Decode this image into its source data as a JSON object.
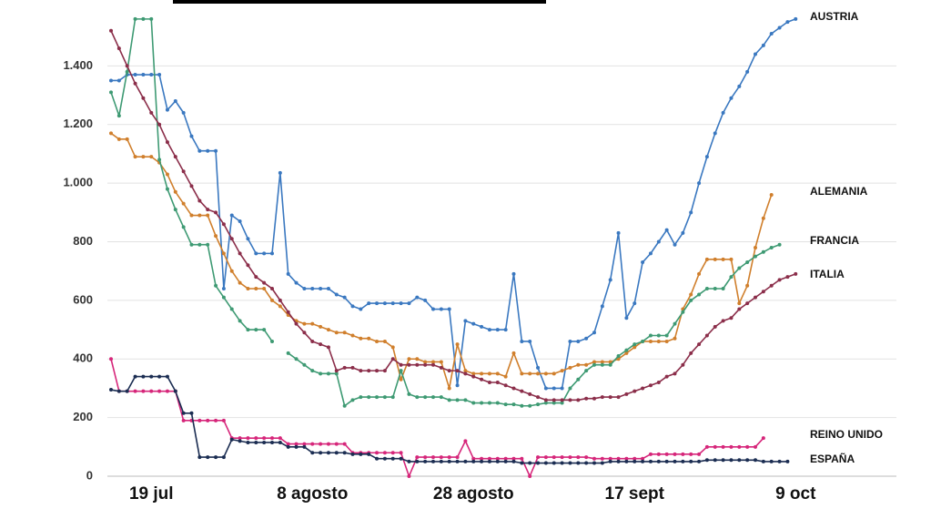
{
  "chart_data": {
    "type": "line",
    "categories": [
      null,
      null,
      null,
      null,
      null,
      "19 jul",
      null,
      null,
      null,
      null,
      null,
      null,
      null,
      null,
      null,
      null,
      null,
      null,
      null,
      null,
      null,
      null,
      null,
      null,
      null,
      "8 agosto",
      null,
      null,
      null,
      null,
      null,
      null,
      null,
      null,
      null,
      null,
      null,
      null,
      null,
      null,
      null,
      null,
      null,
      null,
      null,
      "28 agosto",
      null,
      null,
      null,
      null,
      null,
      null,
      null,
      null,
      null,
      null,
      null,
      null,
      null,
      null,
      null,
      null,
      null,
      null,
      null,
      "17 sept",
      null,
      null,
      null,
      null,
      null,
      null,
      null,
      null,
      null,
      null,
      null,
      null,
      null,
      null,
      null,
      null,
      null,
      null,
      null,
      "9 oct"
    ],
    "series": [
      {
        "name": "AUSTRIA",
        "color": "#3a78c0",
        "values": [
          1350,
          1350,
          1370,
          1370,
          1370,
          1370,
          1370,
          1250,
          1280,
          1240,
          1160,
          1110,
          1110,
          1110,
          640,
          890,
          870,
          810,
          760,
          760,
          760,
          1035,
          690,
          660,
          640,
          640,
          640,
          640,
          620,
          610,
          580,
          570,
          590,
          590,
          590,
          590,
          590,
          590,
          610,
          600,
          570,
          570,
          570,
          310,
          530,
          520,
          510,
          500,
          500,
          500,
          690,
          460,
          460,
          370,
          300,
          300,
          300,
          460,
          460,
          470,
          490,
          580,
          670,
          830,
          540,
          590,
          730,
          760,
          800,
          840,
          790,
          830,
          900,
          1000,
          1090,
          1170,
          1240,
          1290,
          1330,
          1380,
          1440,
          1470,
          1510,
          1530,
          1550,
          1560
        ]
      },
      {
        "name": "ALEMANIA",
        "color": "#d07f2c",
        "values": [
          1170,
          1150,
          1150,
          1090,
          1090,
          1090,
          1070,
          1030,
          970,
          930,
          890,
          890,
          890,
          820,
          760,
          700,
          660,
          640,
          640,
          640,
          600,
          580,
          550,
          530,
          520,
          520,
          510,
          500,
          490,
          490,
          480,
          470,
          470,
          460,
          460,
          440,
          330,
          400,
          400,
          390,
          390,
          390,
          300,
          450,
          360,
          350,
          350,
          350,
          350,
          340,
          420,
          350,
          350,
          350,
          350,
          350,
          360,
          370,
          380,
          380,
          390,
          390,
          390,
          400,
          420,
          440,
          460,
          460,
          460,
          460,
          470,
          570,
          620,
          690,
          740,
          740,
          740,
          740,
          590,
          650,
          780,
          880,
          960,
          null,
          null,
          null
        ]
      },
      {
        "name": "FRANCIA",
        "color": "#3e9a73",
        "values": [
          1310,
          1230,
          1380,
          1560,
          1560,
          1560,
          1080,
          980,
          910,
          850,
          790,
          790,
          790,
          650,
          610,
          570,
          530,
          500,
          500,
          500,
          460,
          null,
          420,
          400,
          380,
          360,
          350,
          350,
          350,
          240,
          260,
          270,
          270,
          270,
          270,
          270,
          360,
          280,
          270,
          270,
          270,
          270,
          260,
          260,
          260,
          250,
          250,
          250,
          250,
          245,
          245,
          240,
          240,
          245,
          250,
          250,
          250,
          300,
          330,
          360,
          380,
          380,
          380,
          410,
          430,
          450,
          460,
          480,
          480,
          480,
          520,
          560,
          600,
          620,
          640,
          640,
          640,
          680,
          710,
          730,
          750,
          765,
          780,
          790,
          null,
          null
        ]
      },
      {
        "name": "ITALIA",
        "color": "#8b2e4a",
        "values": [
          1520,
          1460,
          1400,
          1340,
          1290,
          1240,
          1200,
          1140,
          1090,
          1040,
          990,
          940,
          910,
          900,
          860,
          810,
          760,
          720,
          680,
          660,
          640,
          600,
          560,
          520,
          490,
          460,
          450,
          440,
          360,
          370,
          370,
          360,
          360,
          360,
          360,
          400,
          380,
          380,
          380,
          380,
          380,
          370,
          360,
          360,
          350,
          340,
          330,
          320,
          320,
          310,
          300,
          290,
          280,
          270,
          260,
          260,
          260,
          260,
          260,
          265,
          265,
          270,
          270,
          270,
          280,
          290,
          300,
          310,
          320,
          340,
          350,
          380,
          420,
          450,
          480,
          510,
          530,
          540,
          570,
          590,
          610,
          630,
          650,
          670,
          680,
          690
        ]
      },
      {
        "name": "REINO UNIDO",
        "color": "#d6267a",
        "values": [
          400,
          290,
          290,
          290,
          290,
          290,
          290,
          290,
          290,
          190,
          190,
          190,
          190,
          190,
          190,
          130,
          130,
          130,
          130,
          130,
          130,
          130,
          110,
          110,
          110,
          110,
          110,
          110,
          110,
          110,
          80,
          80,
          80,
          80,
          80,
          80,
          80,
          0,
          65,
          65,
          65,
          65,
          65,
          65,
          120,
          60,
          60,
          60,
          60,
          60,
          60,
          60,
          0,
          65,
          65,
          65,
          65,
          65,
          65,
          65,
          60,
          60,
          60,
          60,
          60,
          60,
          60,
          75,
          75,
          75,
          75,
          75,
          75,
          75,
          100,
          100,
          100,
          100,
          100,
          100,
          100,
          130,
          null,
          null,
          null,
          null
        ]
      },
      {
        "name": "ESPAÑA",
        "color": "#1b2d52",
        "values": [
          295,
          290,
          290,
          340,
          340,
          340,
          340,
          340,
          290,
          215,
          215,
          65,
          65,
          65,
          65,
          125,
          120,
          115,
          115,
          115,
          115,
          115,
          100,
          100,
          100,
          80,
          80,
          80,
          80,
          80,
          75,
          75,
          75,
          60,
          60,
          60,
          60,
          50,
          50,
          50,
          50,
          50,
          50,
          50,
          50,
          50,
          50,
          50,
          50,
          50,
          50,
          45,
          45,
          45,
          45,
          45,
          45,
          45,
          45,
          45,
          45,
          45,
          50,
          50,
          50,
          50,
          50,
          50,
          50,
          50,
          50,
          50,
          50,
          50,
          55,
          55,
          55,
          55,
          55,
          55,
          55,
          50,
          50,
          50,
          50,
          null
        ]
      }
    ],
    "ylim": [
      0,
      1600
    ],
    "yticks": [
      0,
      200,
      400,
      600,
      800,
      {
        "value": 1000,
        "label": "1.000"
      },
      {
        "value": 1200,
        "label": "1.200"
      },
      {
        "value": 1400,
        "label": "1.400"
      }
    ],
    "grid": true
  }
}
